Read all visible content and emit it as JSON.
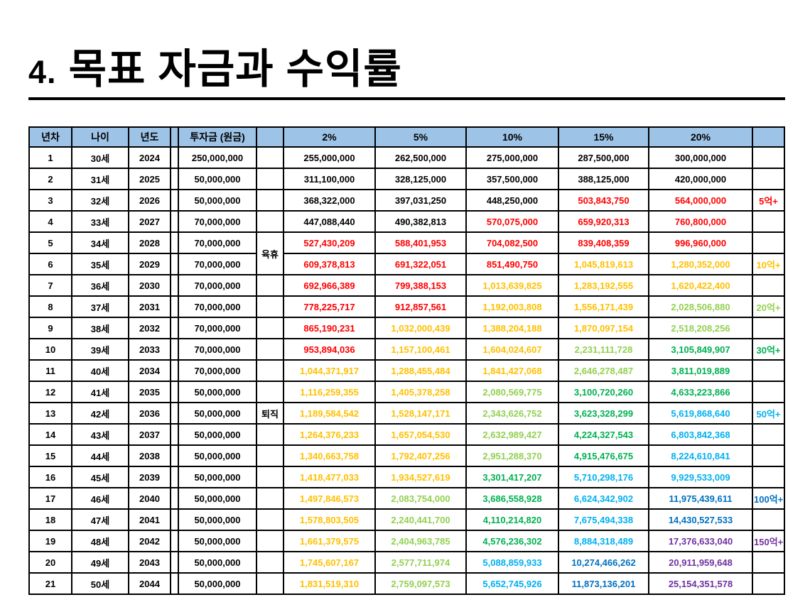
{
  "page": {
    "title_number": "4.",
    "title_text": "목표 자금과 수익률"
  },
  "table": {
    "columns": [
      "년차",
      "나이",
      "년도",
      "",
      "투자금 (원금)",
      "",
      "2%",
      "5%",
      "10%",
      "15%",
      "20%",
      ""
    ],
    "colors": {
      "header_bg": "#9DC3E6",
      "black": "#000000",
      "red": "#FF0000",
      "orange": "#FFC000",
      "light_green": "#92D050",
      "green": "#00B050",
      "light_blue": "#00B0F0",
      "blue": "#0070C0",
      "purple": "#7030A0"
    },
    "rows": [
      {
        "n": "1",
        "age": "30세",
        "yr": "2024",
        "inv": "250,000,000",
        "note": {
          "t": "",
          "span": 1
        },
        "vals": [
          [
            "255,000,000",
            "black"
          ],
          [
            "262,500,000",
            "black"
          ],
          [
            "275,000,000",
            "black"
          ],
          [
            "287,500,000",
            "black"
          ],
          [
            "300,000,000",
            "black"
          ]
        ],
        "marker": [
          "",
          ""
        ]
      },
      {
        "n": "2",
        "age": "31세",
        "yr": "2025",
        "inv": "50,000,000",
        "note": {
          "t": "",
          "span": 1
        },
        "vals": [
          [
            "311,100,000",
            "black"
          ],
          [
            "328,125,000",
            "black"
          ],
          [
            "357,500,000",
            "black"
          ],
          [
            "388,125,000",
            "black"
          ],
          [
            "420,000,000",
            "black"
          ]
        ],
        "marker": [
          "",
          ""
        ]
      },
      {
        "n": "3",
        "age": "32세",
        "yr": "2026",
        "inv": "50,000,000",
        "note": {
          "t": "",
          "span": 1
        },
        "vals": [
          [
            "368,322,000",
            "black"
          ],
          [
            "397,031,250",
            "black"
          ],
          [
            "448,250,000",
            "black"
          ],
          [
            "503,843,750",
            "red"
          ],
          [
            "564,000,000",
            "red"
          ]
        ],
        "marker": [
          "5억+",
          "red"
        ]
      },
      {
        "n": "4",
        "age": "33세",
        "yr": "2027",
        "inv": "70,000,000",
        "note": {
          "t": "",
          "span": 1
        },
        "vals": [
          [
            "447,088,440",
            "black"
          ],
          [
            "490,382,813",
            "black"
          ],
          [
            "570,075,000",
            "red"
          ],
          [
            "659,920,313",
            "red"
          ],
          [
            "760,800,000",
            "red"
          ]
        ],
        "marker": [
          "",
          ""
        ]
      },
      {
        "n": "5",
        "age": "34세",
        "yr": "2028",
        "inv": "70,000,000",
        "note": {
          "t": "육휴",
          "span": 2
        },
        "vals": [
          [
            "527,430,209",
            "red"
          ],
          [
            "588,401,953",
            "red"
          ],
          [
            "704,082,500",
            "red"
          ],
          [
            "839,408,359",
            "red"
          ],
          [
            "996,960,000",
            "red"
          ]
        ],
        "marker": [
          "",
          ""
        ]
      },
      {
        "n": "6",
        "age": "35세",
        "yr": "2029",
        "inv": "70,000,000",
        "note": null,
        "vals": [
          [
            "609,378,813",
            "red"
          ],
          [
            "691,322,051",
            "red"
          ],
          [
            "851,490,750",
            "red"
          ],
          [
            "1,045,819,613",
            "orange"
          ],
          [
            "1,280,352,000",
            "orange"
          ]
        ],
        "marker": [
          "10억+",
          "orange"
        ]
      },
      {
        "n": "7",
        "age": "36세",
        "yr": "2030",
        "inv": "70,000,000",
        "note": {
          "t": "",
          "span": 1
        },
        "vals": [
          [
            "692,966,389",
            "red"
          ],
          [
            "799,388,153",
            "red"
          ],
          [
            "1,013,639,825",
            "orange"
          ],
          [
            "1,283,192,555",
            "orange"
          ],
          [
            "1,620,422,400",
            "orange"
          ]
        ],
        "marker": [
          "",
          ""
        ]
      },
      {
        "n": "8",
        "age": "37세",
        "yr": "2031",
        "inv": "70,000,000",
        "note": {
          "t": "",
          "span": 1
        },
        "vals": [
          [
            "778,225,717",
            "red"
          ],
          [
            "912,857,561",
            "red"
          ],
          [
            "1,192,003,808",
            "orange"
          ],
          [
            "1,556,171,439",
            "orange"
          ],
          [
            "2,028,506,880",
            "light_green"
          ]
        ],
        "marker": [
          "20억+",
          "light_green"
        ]
      },
      {
        "n": "9",
        "age": "38세",
        "yr": "2032",
        "inv": "70,000,000",
        "note": {
          "t": "",
          "span": 1
        },
        "vals": [
          [
            "865,190,231",
            "red"
          ],
          [
            "1,032,000,439",
            "orange"
          ],
          [
            "1,388,204,188",
            "orange"
          ],
          [
            "1,870,097,154",
            "orange"
          ],
          [
            "2,518,208,256",
            "light_green"
          ]
        ],
        "marker": [
          "",
          ""
        ]
      },
      {
        "n": "10",
        "age": "39세",
        "yr": "2033",
        "inv": "70,000,000",
        "note": {
          "t": "",
          "span": 1
        },
        "vals": [
          [
            "953,894,036",
            "red"
          ],
          [
            "1,157,100,461",
            "orange"
          ],
          [
            "1,604,024,607",
            "orange"
          ],
          [
            "2,231,111,728",
            "light_green"
          ],
          [
            "3,105,849,907",
            "green"
          ]
        ],
        "marker": [
          "30억+",
          "green"
        ]
      },
      {
        "n": "11",
        "age": "40세",
        "yr": "2034",
        "inv": "70,000,000",
        "note": {
          "t": "",
          "span": 1
        },
        "vals": [
          [
            "1,044,371,917",
            "orange"
          ],
          [
            "1,288,455,484",
            "orange"
          ],
          [
            "1,841,427,068",
            "orange"
          ],
          [
            "2,646,278,487",
            "light_green"
          ],
          [
            "3,811,019,889",
            "green"
          ]
        ],
        "marker": [
          "",
          ""
        ]
      },
      {
        "n": "12",
        "age": "41세",
        "yr": "2035",
        "inv": "50,000,000",
        "note": {
          "t": "",
          "span": 1
        },
        "vals": [
          [
            "1,116,259,355",
            "orange"
          ],
          [
            "1,405,378,258",
            "orange"
          ],
          [
            "2,080,569,775",
            "light_green"
          ],
          [
            "3,100,720,260",
            "green"
          ],
          [
            "4,633,223,866",
            "green"
          ]
        ],
        "marker": [
          "",
          ""
        ]
      },
      {
        "n": "13",
        "age": "42세",
        "yr": "2036",
        "inv": "50,000,000",
        "note": {
          "t": "퇴직",
          "span": 1
        },
        "vals": [
          [
            "1,189,584,542",
            "orange"
          ],
          [
            "1,528,147,171",
            "orange"
          ],
          [
            "2,343,626,752",
            "light_green"
          ],
          [
            "3,623,328,299",
            "green"
          ],
          [
            "5,619,868,640",
            "light_blue"
          ]
        ],
        "marker": [
          "50억+",
          "light_blue"
        ]
      },
      {
        "n": "14",
        "age": "43세",
        "yr": "2037",
        "inv": "50,000,000",
        "note": {
          "t": "",
          "span": 1
        },
        "vals": [
          [
            "1,264,376,233",
            "orange"
          ],
          [
            "1,657,054,530",
            "orange"
          ],
          [
            "2,632,989,427",
            "light_green"
          ],
          [
            "4,224,327,543",
            "green"
          ],
          [
            "6,803,842,368",
            "light_blue"
          ]
        ],
        "marker": [
          "",
          ""
        ]
      },
      {
        "n": "15",
        "age": "44세",
        "yr": "2038",
        "inv": "50,000,000",
        "note": {
          "t": "",
          "span": 1
        },
        "vals": [
          [
            "1,340,663,758",
            "orange"
          ],
          [
            "1,792,407,256",
            "orange"
          ],
          [
            "2,951,288,370",
            "light_green"
          ],
          [
            "4,915,476,675",
            "green"
          ],
          [
            "8,224,610,841",
            "light_blue"
          ]
        ],
        "marker": [
          "",
          ""
        ]
      },
      {
        "n": "16",
        "age": "45세",
        "yr": "2039",
        "inv": "50,000,000",
        "note": {
          "t": "",
          "span": 1
        },
        "vals": [
          [
            "1,418,477,033",
            "orange"
          ],
          [
            "1,934,527,619",
            "orange"
          ],
          [
            "3,301,417,207",
            "green"
          ],
          [
            "5,710,298,176",
            "light_blue"
          ],
          [
            "9,929,533,009",
            "light_blue"
          ]
        ],
        "marker": [
          "",
          ""
        ]
      },
      {
        "n": "17",
        "age": "46세",
        "yr": "2040",
        "inv": "50,000,000",
        "note": {
          "t": "",
          "span": 1
        },
        "vals": [
          [
            "1,497,846,573",
            "orange"
          ],
          [
            "2,083,754,000",
            "light_green"
          ],
          [
            "3,686,558,928",
            "green"
          ],
          [
            "6,624,342,902",
            "light_blue"
          ],
          [
            "11,975,439,611",
            "blue"
          ]
        ],
        "marker": [
          "100억+",
          "blue"
        ]
      },
      {
        "n": "18",
        "age": "47세",
        "yr": "2041",
        "inv": "50,000,000",
        "note": {
          "t": "",
          "span": 1
        },
        "vals": [
          [
            "1,578,803,505",
            "orange"
          ],
          [
            "2,240,441,700",
            "light_green"
          ],
          [
            "4,110,214,820",
            "green"
          ],
          [
            "7,675,494,338",
            "light_blue"
          ],
          [
            "14,430,527,533",
            "blue"
          ]
        ],
        "marker": [
          "",
          ""
        ]
      },
      {
        "n": "19",
        "age": "48세",
        "yr": "2042",
        "inv": "50,000,000",
        "note": {
          "t": "",
          "span": 1
        },
        "vals": [
          [
            "1,661,379,575",
            "orange"
          ],
          [
            "2,404,963,785",
            "light_green"
          ],
          [
            "4,576,236,302",
            "green"
          ],
          [
            "8,884,318,489",
            "light_blue"
          ],
          [
            "17,376,633,040",
            "purple"
          ]
        ],
        "marker": [
          "150억+",
          "purple"
        ]
      },
      {
        "n": "20",
        "age": "49세",
        "yr": "2043",
        "inv": "50,000,000",
        "note": {
          "t": "",
          "span": 1
        },
        "vals": [
          [
            "1,745,607,167",
            "orange"
          ],
          [
            "2,577,711,974",
            "light_green"
          ],
          [
            "5,088,859,933",
            "light_blue"
          ],
          [
            "10,274,466,262",
            "blue"
          ],
          [
            "20,911,959,648",
            "purple"
          ]
        ],
        "marker": [
          "",
          ""
        ]
      },
      {
        "n": "21",
        "age": "50세",
        "yr": "2044",
        "inv": "50,000,000",
        "note": {
          "t": "",
          "span": 1
        },
        "vals": [
          [
            "1,831,519,310",
            "orange"
          ],
          [
            "2,759,097,573",
            "light_green"
          ],
          [
            "5,652,745,926",
            "light_blue"
          ],
          [
            "11,873,136,201",
            "blue"
          ],
          [
            "25,154,351,578",
            "purple"
          ]
        ],
        "marker": [
          "",
          ""
        ]
      }
    ]
  }
}
